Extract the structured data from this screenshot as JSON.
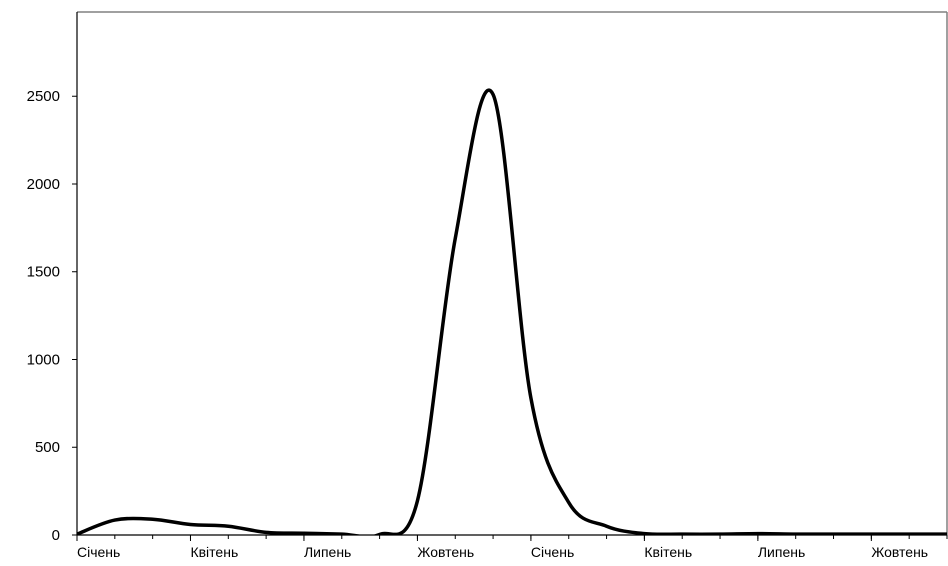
{
  "chart_data": {
    "type": "line",
    "title": "",
    "xlabel": "",
    "ylabel": "",
    "ylim": [
      0,
      2980
    ],
    "y_ticks": [
      0,
      500,
      1000,
      1500,
      2000,
      2500
    ],
    "y_tick_labels": [
      "0",
      "500",
      "1000",
      "1500",
      "2000",
      "2500"
    ],
    "x_ticks": [
      {
        "label": "Січень",
        "x": 0
      },
      {
        "label": "Квітень",
        "x": 3
      },
      {
        "label": "Липень",
        "x": 6
      },
      {
        "label": "Жовтень",
        "x": 9
      },
      {
        "label": "Січень",
        "x": 12
      },
      {
        "label": "Квітень",
        "x": 15
      },
      {
        "label": "Липень",
        "x": 18
      },
      {
        "label": "Жовтень",
        "x": 21
      }
    ],
    "xlim": [
      0,
      23
    ],
    "grid": false,
    "legend": "none",
    "series": [
      {
        "color": "#000000",
        "x": [
          0,
          1,
          2,
          3,
          4,
          5,
          6,
          7,
          8,
          9,
          10,
          11,
          12,
          13,
          14,
          15,
          16,
          17,
          18,
          19,
          20,
          21,
          22,
          23
        ],
        "y": [
          5,
          85,
          90,
          60,
          50,
          15,
          10,
          5,
          3,
          195,
          1690,
          2510,
          780,
          185,
          50,
          8,
          5,
          5,
          8,
          5,
          5,
          5,
          5,
          5
        ]
      }
    ]
  }
}
